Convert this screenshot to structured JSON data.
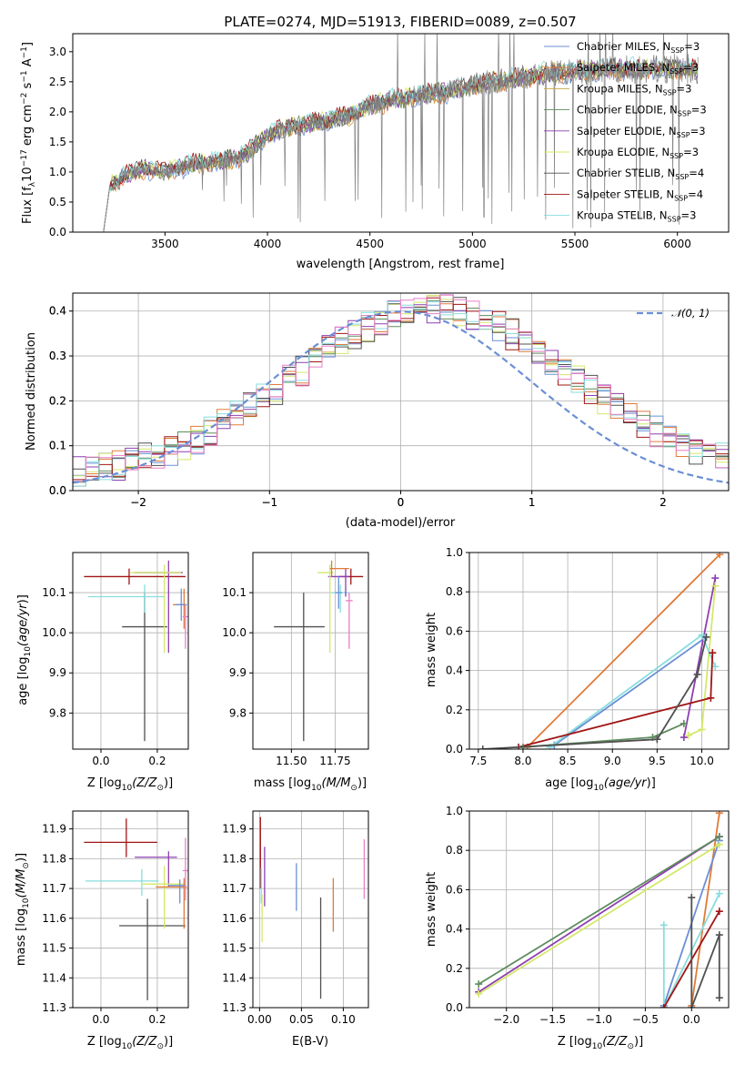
{
  "colors": {
    "chabrier_miles": "#6a8fd5",
    "salpeter_miles": "#e07b39",
    "kroupa_miles": "#c8a84a",
    "chabrier_elodie": "#5e8c5e",
    "salpeter_elodie": "#8e3fb0",
    "kroupa_elodie": "#d4e86a",
    "chabrier_stelib": "#505050",
    "salpeter_stelib": "#a01515",
    "kroupa_stelib": "#88dddd",
    "data": "#808080",
    "pink": "#e87fc7"
  },
  "chart_data": [
    {
      "id": "spectrum",
      "type": "line",
      "title": "PLATE=0274, MJD=51913, FIBERID=0089, z=0.507",
      "xlabel": "wavelength [Angstrom, rest frame]",
      "ylabel_parts": [
        "Flux [f",
        "λ",
        "10",
        "−17",
        " erg cm",
        "−2",
        " s",
        "−1",
        " A",
        "−1",
        "]"
      ],
      "xlim": [
        3050,
        6250
      ],
      "ylim": [
        0,
        3.3
      ],
      "xticks": [
        3500,
        4000,
        4500,
        5000,
        5500,
        6000
      ],
      "yticks": [
        0.0,
        0.5,
        1.0,
        1.5,
        2.0,
        2.5,
        3.0
      ],
      "continuum": [
        [
          3200,
          0.0
        ],
        [
          3230,
          0.75
        ],
        [
          3300,
          0.95
        ],
        [
          3400,
          1.05
        ],
        [
          3500,
          1.0
        ],
        [
          3600,
          1.1
        ],
        [
          3700,
          1.15
        ],
        [
          3800,
          1.2
        ],
        [
          3900,
          1.3
        ],
        [
          4000,
          1.6
        ],
        [
          4100,
          1.75
        ],
        [
          4200,
          1.8
        ],
        [
          4300,
          1.85
        ],
        [
          4400,
          1.95
        ],
        [
          4500,
          2.1
        ],
        [
          4600,
          2.2
        ],
        [
          4700,
          2.25
        ],
        [
          4800,
          2.3
        ],
        [
          4900,
          2.35
        ],
        [
          5000,
          2.45
        ],
        [
          5100,
          2.5
        ],
        [
          5200,
          2.55
        ],
        [
          5300,
          2.6
        ],
        [
          5400,
          2.65
        ],
        [
          5500,
          2.65
        ],
        [
          5600,
          2.7
        ],
        [
          5700,
          2.72
        ],
        [
          5800,
          2.7
        ],
        [
          5900,
          2.72
        ],
        [
          6000,
          2.72
        ],
        [
          6100,
          2.7
        ]
      ],
      "legend": [
        {
          "pre": "Chabrier MILES, N",
          "sub": "SSP",
          "post": "=3"
        },
        {
          "pre": "Salpeter MILES, N",
          "sub": "SSP",
          "post": "=3"
        },
        {
          "pre": "Kroupa MILES, N",
          "sub": "SSP",
          "post": "=3"
        },
        {
          "pre": "Chabrier ELODIE, N",
          "sub": "SSP",
          "post": "=3"
        },
        {
          "pre": "Salpeter ELODIE, N",
          "sub": "SSP",
          "post": "=3"
        },
        {
          "pre": "Kroupa ELODIE, N",
          "sub": "SSP",
          "post": "=3"
        },
        {
          "pre": "Chabrier STELIB, N",
          "sub": "SSP",
          "post": "=4"
        },
        {
          "pre": "Salpeter STELIB, N",
          "sub": "SSP",
          "post": "=4"
        },
        {
          "pre": "Kroupa STELIB, N",
          "sub": "SSP",
          "post": "=3"
        }
      ]
    },
    {
      "id": "residuals",
      "type": "histogram",
      "xlabel": "(data-model)/error",
      "ylabel": "Normed distribution",
      "xlim": [
        -2.5,
        2.5
      ],
      "ylim": [
        0,
        0.44
      ],
      "xticks": [
        -2,
        -1,
        0,
        1,
        2
      ],
      "yticks": [
        0.0,
        0.1,
        0.2,
        0.3,
        0.4
      ],
      "grid": true,
      "bin_width": 0.1,
      "legend": "𝒩(0, 1)",
      "legend_position": "top-right",
      "gaussian": {
        "mu": 0,
        "sigma": 1
      }
    },
    {
      "id": "age_vs_z",
      "type": "errorbar",
      "xlabel_pre": "Z [log",
      "xlabel_sub": "10",
      "xlabel_post": "(Z/Z",
      "xlabel_end": ")]",
      "ylabel": "age  [log10(age/yr)]",
      "xlim": [
        -0.1,
        0.31
      ],
      "ylim": [
        9.71,
        10.2
      ],
      "xticks": [
        0.0,
        0.2
      ],
      "yticks": [
        9.8,
        9.9,
        10.0,
        10.1
      ],
      "points": [
        {
          "c": "chabrier_stelib",
          "x": 0.155,
          "y": 10.015,
          "xe": [
            0.08,
            0.08
          ],
          "ye": [
            0.285,
            0.085
          ]
        },
        {
          "c": "salpeter_stelib",
          "x": 0.1,
          "y": 10.14,
          "xe": [
            0.16,
            0.2
          ],
          "ye": [
            0.02,
            0.02
          ]
        },
        {
          "c": "kroupa_stelib",
          "x": 0.155,
          "y": 10.09,
          "xe": [
            0.2,
            0.07
          ],
          "ye": [
            0.04,
            0.03
          ]
        },
        {
          "c": "salpeter_elodie",
          "x": 0.24,
          "y": 10.15,
          "xe": [
            0.12,
            0.05
          ],
          "ye": [
            0.2,
            0.03
          ]
        },
        {
          "c": "kroupa_elodie",
          "x": 0.225,
          "y": 10.15,
          "xe": [
            0.12,
            0.06
          ],
          "ye": [
            0.2,
            0.02
          ]
        },
        {
          "c": "salpeter_miles",
          "x": 0.295,
          "y": 10.07,
          "xe": [
            0.04,
            0.01
          ],
          "ye": [
            0.06,
            0.04
          ]
        },
        {
          "c": "chabrier_miles",
          "x": 0.285,
          "y": 10.07,
          "xe": [
            0.02,
            0.02
          ],
          "ye": [
            0.04,
            0.04
          ]
        },
        {
          "c": "pink",
          "x": 0.3,
          "y": 10.04,
          "xe": [
            0.01,
            0.01
          ],
          "ye": [
            0.08,
            0.03
          ]
        }
      ]
    },
    {
      "id": "age_vs_mass",
      "type": "errorbar",
      "xlabel_pre": "mass [log",
      "xlabel_sub": "10",
      "xlabel_post": "(M/M",
      "xlabel_end": ")]",
      "xlim": [
        11.28,
        11.94
      ],
      "ylim": [
        9.71,
        10.2
      ],
      "xticks": [
        11.5,
        11.75
      ],
      "yticks": [
        9.8,
        9.9,
        10.0,
        10.1
      ],
      "points": [
        {
          "c": "chabrier_stelib",
          "x": 11.57,
          "y": 10.015,
          "xe": [
            0.17,
            0.12
          ],
          "ye": [
            0.285,
            0.085
          ]
        },
        {
          "c": "salpeter_stelib",
          "x": 11.84,
          "y": 10.14,
          "xe": [
            0.07,
            0.07
          ],
          "ye": [
            0.02,
            0.02
          ]
        },
        {
          "c": "kroupa_stelib",
          "x": 11.78,
          "y": 10.1,
          "xe": [
            0.05,
            0.05
          ],
          "ye": [
            0.05,
            0.02
          ]
        },
        {
          "c": "salpeter_elodie",
          "x": 11.81,
          "y": 10.14,
          "xe": [
            0.1,
            0.02
          ],
          "ye": [
            0.05,
            0.02
          ]
        },
        {
          "c": "kroupa_elodie",
          "x": 11.72,
          "y": 10.15,
          "xe": [
            0.07,
            0.02
          ],
          "ye": [
            0.2,
            0.02
          ]
        },
        {
          "c": "salpeter_miles",
          "x": 11.73,
          "y": 10.16,
          "xe": [
            0.01,
            0.1
          ],
          "ye": [
            0.02,
            0.02
          ]
        },
        {
          "c": "chabrier_miles",
          "x": 11.77,
          "y": 10.1,
          "xe": [
            0.02,
            0.02
          ],
          "ye": [
            0.04,
            0.04
          ]
        },
        {
          "c": "pink",
          "x": 11.83,
          "y": 10.08,
          "xe": [
            0.02,
            0.02
          ],
          "ye": [
            0.12,
            0.02
          ]
        }
      ]
    },
    {
      "id": "weight_vs_age",
      "type": "line",
      "xlabel": "age  [log10(age/yr)]",
      "ylabel": "mass weight",
      "xlim": [
        7.4,
        10.3
      ],
      "ylim": [
        0,
        1
      ],
      "xticks": [
        7.5,
        8.0,
        8.5,
        9.0,
        9.5,
        10.0
      ],
      "yticks": [
        0.0,
        0.2,
        0.4,
        0.6,
        0.8,
        1.0
      ],
      "series": [
        {
          "c": "salpeter_miles",
          "x": [
            8.05,
            10.2
          ],
          "y": [
            0.01,
            0.99
          ]
        },
        {
          "c": "chabrier_miles",
          "x": [
            8.35,
            10.05
          ],
          "y": [
            0.02,
            0.57
          ]
        },
        {
          "c": "salpeter_elodie",
          "x": [
            9.8,
            10.15
          ],
          "y": [
            0.06,
            0.87
          ]
        },
        {
          "c": "kroupa_elodie",
          "x": [
            9.85,
            10.0,
            10.15
          ],
          "y": [
            0.07,
            0.1,
            0.83
          ]
        },
        {
          "c": "kroupa_stelib",
          "x": [
            8.3,
            10.0,
            10.15
          ],
          "y": [
            0.01,
            0.58,
            0.42
          ]
        },
        {
          "c": "salpeter_stelib",
          "x": [
            7.95,
            10.1,
            10.12
          ],
          "y": [
            0.01,
            0.26,
            0.49
          ]
        },
        {
          "c": "chabrier_elodie",
          "x": [
            8.0,
            9.45,
            9.8
          ],
          "y": [
            0.01,
            0.06,
            0.13
          ]
        },
        {
          "c": "chabrier_stelib",
          "x": [
            7.55,
            9.5,
            9.95,
            10.05
          ],
          "y": [
            0.0,
            0.05,
            0.38,
            0.57
          ]
        }
      ]
    },
    {
      "id": "mass_vs_z",
      "type": "errorbar",
      "xlabel_pre": "Z [log",
      "xlabel_sub": "10",
      "xlabel_post": "(Z/Z",
      "xlabel_end": ")]",
      "ylabel": "mass [log10(M/M)]",
      "xlim": [
        -0.1,
        0.31
      ],
      "ylim": [
        11.3,
        11.96
      ],
      "xticks": [
        0.0,
        0.2
      ],
      "yticks": [
        11.3,
        11.4,
        11.5,
        11.6,
        11.7,
        11.8,
        11.9
      ],
      "points": [
        {
          "c": "chabrier_stelib",
          "x": 0.165,
          "y": 11.575,
          "xe": [
            0.1,
            0.135
          ],
          "ye": [
            0.25,
            0.09
          ]
        },
        {
          "c": "salpeter_stelib",
          "x": 0.09,
          "y": 11.855,
          "xe": [
            0.15,
            0.11
          ],
          "ye": [
            0.05,
            0.08
          ]
        },
        {
          "c": "kroupa_stelib",
          "x": 0.145,
          "y": 11.725,
          "xe": [
            0.2,
            0.06
          ],
          "ye": [
            0.05,
            0.04
          ]
        },
        {
          "c": "salpeter_elodie",
          "x": 0.24,
          "y": 11.805,
          "xe": [
            0.12,
            0.03
          ],
          "ye": [
            0.1,
            0.02
          ]
        },
        {
          "c": "kroupa_elodie",
          "x": 0.225,
          "y": 11.715,
          "xe": [
            0.08,
            0.07
          ],
          "ye": [
            0.15,
            0.06
          ]
        },
        {
          "c": "salpeter_miles",
          "x": 0.295,
          "y": 11.705,
          "xe": [
            0.1,
            0.01
          ],
          "ye": [
            0.14,
            0.03
          ]
        },
        {
          "c": "chabrier_miles",
          "x": 0.28,
          "y": 11.71,
          "xe": [
            0.04,
            0.02
          ],
          "ye": [
            0.06,
            0.02
          ]
        },
        {
          "c": "pink",
          "x": 0.3,
          "y": 11.76,
          "xe": [
            0.01,
            0.01
          ],
          "ye": [
            0.1,
            0.11
          ]
        }
      ]
    },
    {
      "id": "mass_vs_ebv",
      "type": "errorbar",
      "xlabel": "E(B-V)",
      "xlim": [
        -0.008,
        0.13
      ],
      "ylim": [
        11.3,
        11.96
      ],
      "xticks": [
        0.0,
        0.05,
        0.1
      ],
      "yticks": [
        11.3,
        11.4,
        11.5,
        11.6,
        11.7,
        11.8,
        11.9
      ],
      "points": [
        {
          "c": "chabrier_stelib",
          "x": 0.073,
          "y": 11.5,
          "xe": [
            0,
            0
          ],
          "ye": [
            0.17,
            0.17
          ]
        },
        {
          "c": "salpeter_stelib",
          "x": 0.001,
          "y": 11.83,
          "xe": [
            0,
            0
          ],
          "ye": [
            0.13,
            0.11
          ]
        },
        {
          "c": "kroupa_stelib",
          "x": 0.002,
          "y": 11.71,
          "xe": [
            0,
            0
          ],
          "ye": [
            0.06,
            0.06
          ]
        },
        {
          "c": "kroupa_elodie",
          "x": 0.003,
          "y": 11.6,
          "xe": [
            0,
            0
          ],
          "ye": [
            0.08,
            0.08
          ]
        },
        {
          "c": "salpeter_elodie",
          "x": 0.006,
          "y": 11.74,
          "xe": [
            0,
            0
          ],
          "ye": [
            0.1,
            0.1
          ]
        },
        {
          "c": "chabrier_miles",
          "x": 0.044,
          "y": 11.705,
          "xe": [
            0,
            0
          ],
          "ye": [
            0.08,
            0.08
          ]
        },
        {
          "c": "salpeter_miles",
          "x": 0.088,
          "y": 11.645,
          "xe": [
            0,
            0
          ],
          "ye": [
            0.09,
            0.09
          ]
        },
        {
          "c": "pink",
          "x": 0.125,
          "y": 11.765,
          "xe": [
            0,
            0
          ],
          "ye": [
            0.1,
            0.1
          ]
        }
      ]
    },
    {
      "id": "weight_vs_z",
      "type": "line",
      "xlabel_pre": "Z [log",
      "xlabel_sub": "10",
      "xlabel_post": "(Z/Z",
      "xlabel_end": ")]",
      "ylabel": "mass weight",
      "xlim": [
        -2.4,
        0.4
      ],
      "ylim": [
        0,
        1
      ],
      "xticks": [
        -2.0,
        -1.5,
        -1.0,
        -0.5,
        0.0
      ],
      "yticks": [
        0.0,
        0.2,
        0.4,
        0.6,
        0.8,
        1.0
      ],
      "series": [
        {
          "c": "salpeter_miles",
          "x": [
            0.0,
            0.3
          ],
          "y": [
            0.01,
            0.99
          ]
        },
        {
          "c": "chabrier_miles",
          "x": [
            -0.3,
            0.3
          ],
          "y": [
            0.01,
            0.85
          ]
        },
        {
          "c": "salpeter_elodie",
          "x": [
            -2.3,
            0.3
          ],
          "y": [
            0.08,
            0.87
          ]
        },
        {
          "c": "kroupa_elodie",
          "x": [
            -2.3,
            0.3
          ],
          "y": [
            0.07,
            0.83
          ]
        },
        {
          "c": "chabrier_elodie",
          "x": [
            -2.3,
            0.3
          ],
          "y": [
            0.12,
            0.87
          ]
        },
        {
          "c": "kroupa_stelib",
          "x": [
            -0.3,
            -0.3,
            0.3
          ],
          "y": [
            0.42,
            0.0,
            0.58
          ]
        },
        {
          "c": "salpeter_stelib",
          "x": [
            -0.3,
            0.3
          ],
          "y": [
            0.0,
            0.49
          ]
        },
        {
          "c": "chabrier_stelib",
          "x": [
            0.0,
            0.0,
            0.3,
            0.3
          ],
          "y": [
            0.56,
            0.0,
            0.37,
            0.05
          ]
        }
      ]
    }
  ]
}
